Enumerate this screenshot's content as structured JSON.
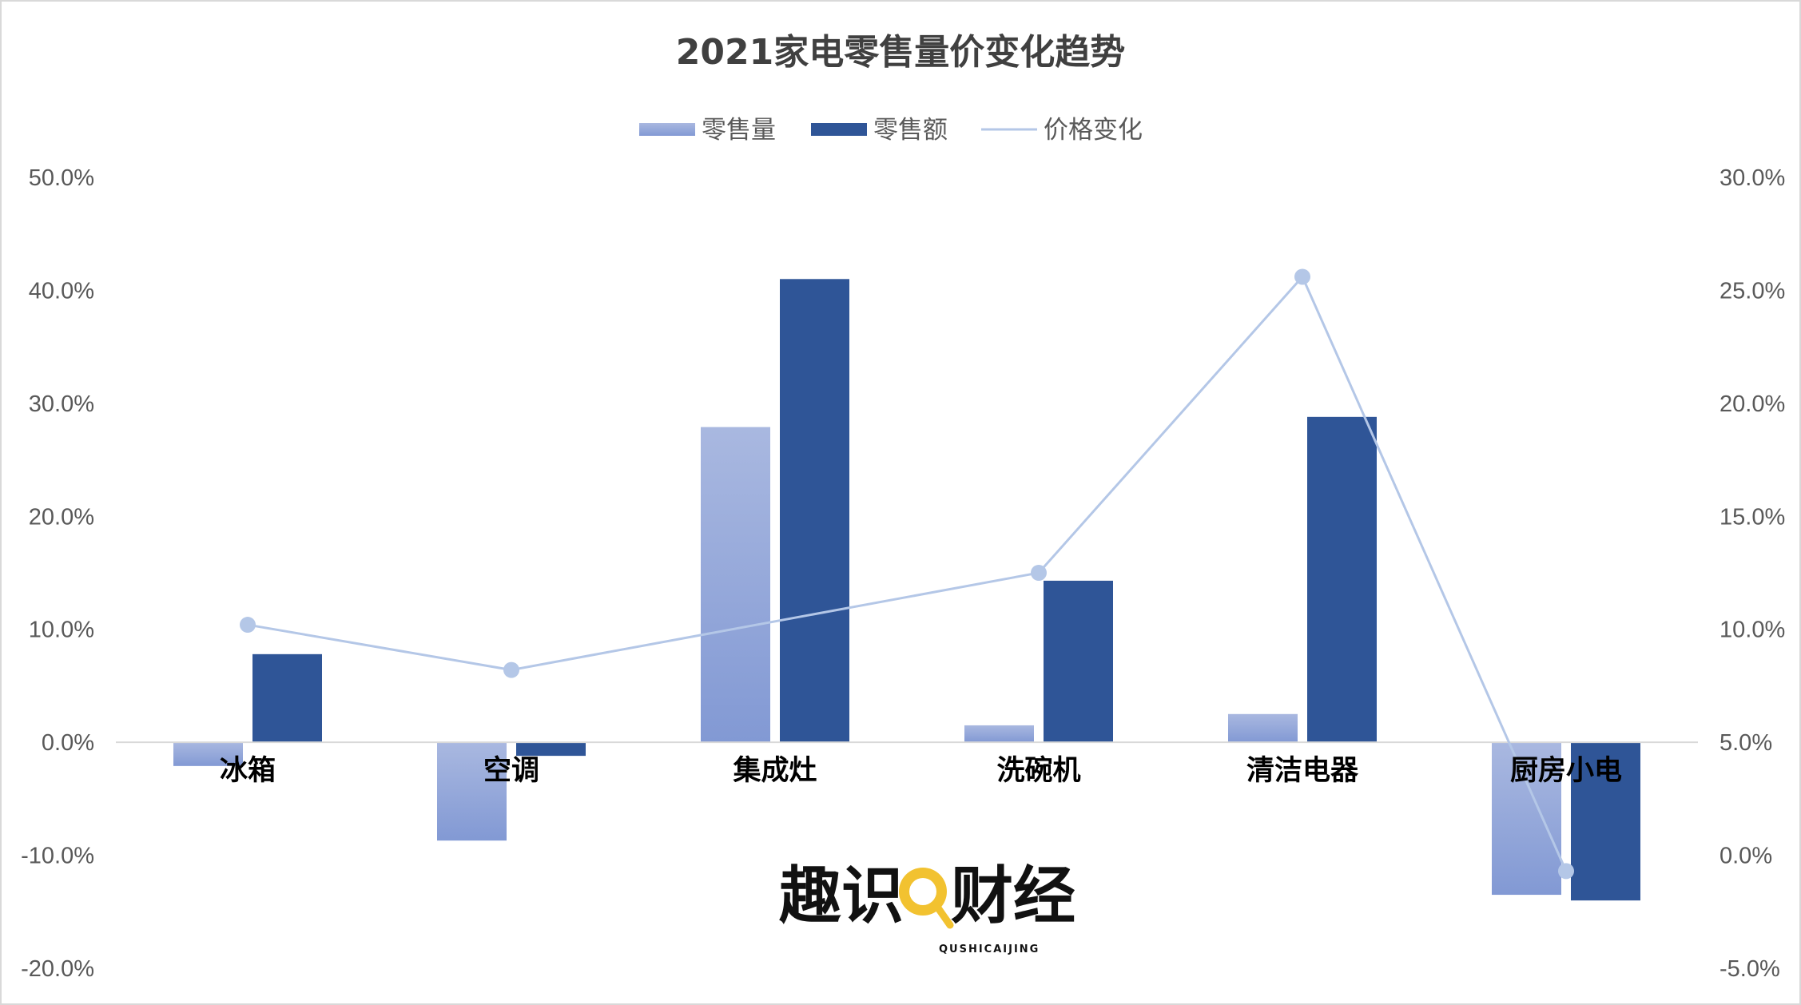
{
  "chart_data": {
    "type": "bar",
    "title": "2021家电零售量价变化趋势",
    "categories": [
      "冰箱",
      "空调",
      "集成灶",
      "洗碗机",
      "清洁电器",
      "厨房小电"
    ],
    "series": [
      {
        "name": "零售量",
        "kind": "bar",
        "axis": "left",
        "values": [
          -2.1,
          -8.7,
          27.9,
          1.5,
          2.5,
          -13.5
        ]
      },
      {
        "name": "零售额",
        "kind": "bar",
        "axis": "left",
        "values": [
          7.8,
          -1.2,
          41.0,
          14.3,
          28.8,
          -14.0
        ]
      },
      {
        "name": "价格变化",
        "kind": "line",
        "axis": "right",
        "values": [
          10.2,
          8.2,
          null,
          12.5,
          25.6,
          -0.7
        ]
      }
    ],
    "ylim_left": [
      -20,
      50
    ],
    "ylim_right": [
      -5,
      30
    ],
    "yticks_left": [
      "50.0%",
      "40.0%",
      "30.0%",
      "20.0%",
      "10.0%",
      "0.0%",
      "-10.0%",
      "-20.0%"
    ],
    "yticks_right": [
      "30.0%",
      "25.0%",
      "20.0%",
      "15.0%",
      "10.0%",
      "5.0%",
      "0.0%",
      "-5.0%"
    ],
    "legend_position": "top-center",
    "colors": {
      "bar1_top": "#A9B8E0",
      "bar1_bottom": "#8299D4",
      "bar2": "#2F5597",
      "line": "#B4C7E7"
    },
    "grid": false
  },
  "logo": {
    "main": "趣识财经",
    "sub": "QUSHICAIJING"
  }
}
